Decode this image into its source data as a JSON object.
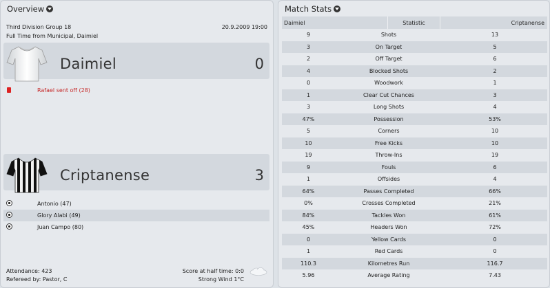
{
  "overview": {
    "title": "Overview",
    "competition": "Third Division Group 18",
    "datetime": "20.9.2009 19:00",
    "venue": "Full Time from Municipal, Daimiel",
    "home": {
      "name": "Daimiel",
      "score": "0",
      "events": [
        {
          "type": "red-card",
          "text": "Rafael sent off (28)"
        }
      ]
    },
    "away": {
      "name": "Criptanense",
      "score": "3",
      "events": [
        {
          "type": "goal",
          "text": "Antonio (47)"
        },
        {
          "type": "goal",
          "text": "Glory Alabi (49)"
        },
        {
          "type": "goal",
          "text": "Juan Campo (80)"
        }
      ]
    },
    "attendance": "Attendance: 423",
    "referee": "Refereed by: Pastor, C",
    "halftime": "Score at half time: 0:0",
    "weather": "Strong Wind 1°C",
    "colors": {
      "red_event": "#c62828",
      "panel": "#e6e9ed",
      "row_alt": "#d3d8de"
    }
  },
  "stats": {
    "title": "Match Stats",
    "headers": {
      "home": "Daimiel",
      "stat": "Statistic",
      "away": "Criptanense"
    },
    "rows": [
      {
        "home": "9",
        "stat": "Shots",
        "away": "13"
      },
      {
        "home": "3",
        "stat": "On Target",
        "away": "5"
      },
      {
        "home": "2",
        "stat": "Off Target",
        "away": "6"
      },
      {
        "home": "4",
        "stat": "Blocked Shots",
        "away": "2"
      },
      {
        "home": "0",
        "stat": "Woodwork",
        "away": "1"
      },
      {
        "home": "1",
        "stat": "Clear Cut Chances",
        "away": "3"
      },
      {
        "home": "3",
        "stat": "Long Shots",
        "away": "4"
      },
      {
        "home": "47%",
        "stat": "Possession",
        "away": "53%"
      },
      {
        "home": "5",
        "stat": "Corners",
        "away": "10"
      },
      {
        "home": "10",
        "stat": "Free Kicks",
        "away": "10"
      },
      {
        "home": "19",
        "stat": "Throw-Ins",
        "away": "19"
      },
      {
        "home": "9",
        "stat": "Fouls",
        "away": "6"
      },
      {
        "home": "1",
        "stat": "Offsides",
        "away": "4"
      },
      {
        "home": "64%",
        "stat": "Passes Completed",
        "away": "66%"
      },
      {
        "home": "0%",
        "stat": "Crosses Completed",
        "away": "21%"
      },
      {
        "home": "84%",
        "stat": "Tackles Won",
        "away": "61%"
      },
      {
        "home": "45%",
        "stat": "Headers Won",
        "away": "72%"
      },
      {
        "home": "0",
        "stat": "Yellow Cards",
        "away": "0"
      },
      {
        "home": "1",
        "stat": "Red Cards",
        "away": "0"
      },
      {
        "home": "110.3",
        "stat": "Kilometres Run",
        "away": "116.7"
      },
      {
        "home": "5.96",
        "stat": "Average Rating",
        "away": "7.43"
      }
    ]
  }
}
